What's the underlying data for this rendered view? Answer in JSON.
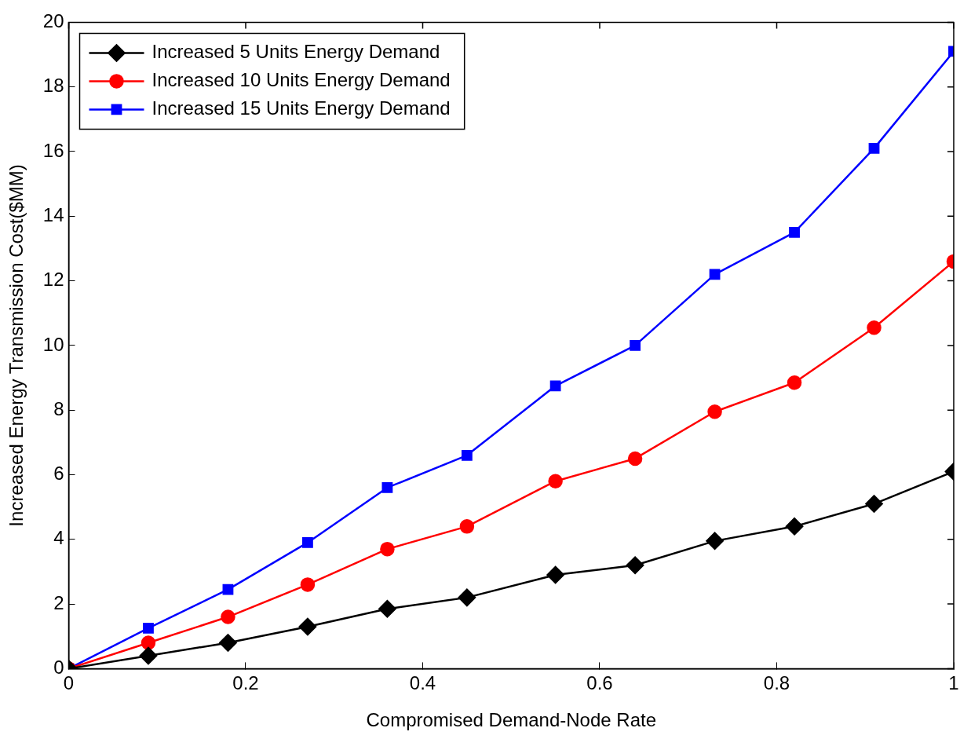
{
  "chart_data": {
    "type": "line",
    "xlabel": "Compromised Demand-Node Rate",
    "ylabel": "Increased Energy Transmission Cost($MM)",
    "x": [
      0,
      0.09,
      0.18,
      0.27,
      0.36,
      0.45,
      0.55,
      0.64,
      0.73,
      0.82,
      0.91,
      1
    ],
    "series": [
      {
        "name": "Increased 5 Units Energy Demand",
        "color": "#000000",
        "marker": "diamond",
        "values": [
          0,
          0.4,
          0.8,
          1.3,
          1.85,
          2.2,
          2.9,
          3.2,
          3.95,
          4.4,
          5.1,
          6.1
        ]
      },
      {
        "name": "Increased 10 Units Energy Demand",
        "color": "#ff0000",
        "marker": "circle",
        "values": [
          0,
          0.8,
          1.6,
          2.6,
          3.7,
          4.4,
          5.8,
          6.5,
          7.95,
          8.85,
          10.55,
          12.6
        ]
      },
      {
        "name": "Increased 15 Units Energy Demand",
        "color": "#0000ff",
        "marker": "square",
        "values": [
          0,
          1.25,
          2.45,
          3.9,
          5.6,
          6.6,
          8.75,
          10,
          12.2,
          13.5,
          16.1,
          19.1
        ]
      }
    ],
    "xlim": [
      0,
      1
    ],
    "xticks": [
      0,
      0.2,
      0.4,
      0.6,
      0.8,
      1
    ],
    "ylim": [
      0,
      20
    ],
    "yticks": [
      0,
      2,
      4,
      6,
      8,
      10,
      12,
      14,
      16,
      18,
      20
    ],
    "grid": false,
    "legend": "top left",
    "line_style": "solid"
  }
}
